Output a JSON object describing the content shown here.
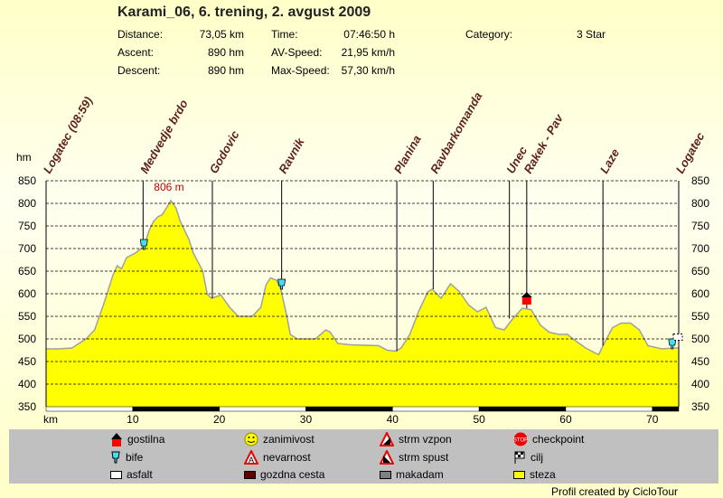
{
  "header": {
    "title": "Karami_06, 6. trening, 2. avgust 2009",
    "stats": [
      {
        "label": "Distance:",
        "value": "73,05 km"
      },
      {
        "label": "Ascent:",
        "value": "890 hm"
      },
      {
        "label": "Descent:",
        "value": "890 hm"
      },
      {
        "label": "Time:",
        "value": "07:46:50 h"
      },
      {
        "label": "AV-Speed:",
        "value": "21,95 km/h"
      },
      {
        "label": "Max-Speed:",
        "value": "57,30 km/h"
      },
      {
        "label": "Category:",
        "value": "3 Star"
      }
    ]
  },
  "chart_data": {
    "type": "area",
    "title": "Karami_06, 6. trening, 2. avgust 2009",
    "xlabel": "km",
    "ylabel": "hm",
    "xlim": [
      0,
      73.05
    ],
    "ylim": [
      350,
      850
    ],
    "xticks": [
      10,
      20,
      30,
      40,
      50,
      60,
      70
    ],
    "yticks": [
      350,
      400,
      450,
      500,
      550,
      600,
      650,
      700,
      750,
      800,
      850
    ],
    "grid": true,
    "fill_color": "#ffff00",
    "max_label": "806 m",
    "max_point": [
      14.4,
      806
    ],
    "profile": [
      [
        0,
        478
      ],
      [
        1.5,
        478
      ],
      [
        3,
        480
      ],
      [
        4.6,
        500
      ],
      [
        5.6,
        520
      ],
      [
        6.7,
        580
      ],
      [
        7.7,
        640
      ],
      [
        8.2,
        662
      ],
      [
        8.7,
        655
      ],
      [
        9.3,
        680
      ],
      [
        10.3,
        690
      ],
      [
        11.3,
        705
      ],
      [
        11.9,
        740
      ],
      [
        12.4,
        760
      ],
      [
        12.9,
        770
      ],
      [
        13.4,
        775
      ],
      [
        13.9,
        790
      ],
      [
        14.4,
        806
      ],
      [
        15,
        790
      ],
      [
        15.5,
        760
      ],
      [
        16.5,
        720
      ],
      [
        17,
        690
      ],
      [
        18.1,
        650
      ],
      [
        18.6,
        600
      ],
      [
        19.1,
        590
      ],
      [
        20.2,
        597
      ],
      [
        21.2,
        570
      ],
      [
        22.2,
        550
      ],
      [
        23.8,
        550
      ],
      [
        24.8,
        570
      ],
      [
        25.4,
        620
      ],
      [
        25.9,
        635
      ],
      [
        26.6,
        630
      ],
      [
        27.1,
        610
      ],
      [
        27.8,
        550
      ],
      [
        28.2,
        510
      ],
      [
        29,
        500
      ],
      [
        31.1,
        500
      ],
      [
        32.3,
        520
      ],
      [
        32.8,
        515
      ],
      [
        33.7,
        490
      ],
      [
        35.2,
        487
      ],
      [
        38.4,
        485
      ],
      [
        39.4,
        475
      ],
      [
        40.4,
        473
      ],
      [
        41,
        480
      ],
      [
        42,
        510
      ],
      [
        43,
        560
      ],
      [
        44.1,
        605
      ],
      [
        44.6,
        610
      ],
      [
        45.6,
        590
      ],
      [
        46.7,
        622
      ],
      [
        47.7,
        605
      ],
      [
        48.8,
        575
      ],
      [
        49.8,
        560
      ],
      [
        50.8,
        570
      ],
      [
        51.9,
        525
      ],
      [
        52.9,
        520
      ],
      [
        53.9,
        545
      ],
      [
        55,
        568
      ],
      [
        56,
        565
      ],
      [
        57.1,
        530
      ],
      [
        58.1,
        515
      ],
      [
        59.2,
        510
      ],
      [
        60.2,
        510
      ],
      [
        61.2,
        495
      ],
      [
        62.3,
        480
      ],
      [
        63.3,
        470
      ],
      [
        63.8,
        465
      ],
      [
        64.3,
        485
      ],
      [
        65.4,
        525
      ],
      [
        66.4,
        535
      ],
      [
        67.5,
        535
      ],
      [
        68.5,
        520
      ],
      [
        69.5,
        485
      ],
      [
        71.1,
        478
      ],
      [
        72.6,
        480
      ],
      [
        73.05,
        480
      ]
    ],
    "waypoints": [
      {
        "name": "Logatec (08:59)",
        "km": 0
      },
      {
        "name": "Medvedje brdo",
        "km": 11.2
      },
      {
        "name": "Godovic",
        "km": 19.2
      },
      {
        "name": "Ravnik",
        "km": 27.2
      },
      {
        "name": "Planina",
        "km": 40.5
      },
      {
        "name": "Ravbarkomanda",
        "km": 44.7
      },
      {
        "name": "Unec",
        "km": 53.5
      },
      {
        "name": "Rakek - Pav",
        "km": 55.5
      },
      {
        "name": "Laze",
        "km": 64.3
      },
      {
        "name": "Logatec",
        "km": 73.05
      }
    ],
    "markers": [
      {
        "type": "bife",
        "km": 11.3,
        "hm": 710
      },
      {
        "type": "bife",
        "km": 27.2,
        "hm": 622
      },
      {
        "type": "gostilna",
        "km": 55.5,
        "hm": 588
      },
      {
        "type": "bife",
        "km": 72.3,
        "hm": 490
      },
      {
        "type": "cilj",
        "km": 73.05,
        "hm": 495
      }
    ]
  },
  "legend": [
    {
      "label": "gostilna",
      "icon": "gostilna-icon"
    },
    {
      "label": "bife",
      "icon": "bife-icon"
    },
    {
      "label": "asfalt",
      "icon": "asfalt-swatch",
      "color": "#ffffff"
    },
    {
      "label": "zanimivost",
      "icon": "smiley-icon"
    },
    {
      "label": "nevarnost",
      "icon": "danger-icon"
    },
    {
      "label": "gozdna cesta",
      "icon": "gozdna-swatch",
      "color": "#600000"
    },
    {
      "label": "strm vzpon",
      "icon": "steep-up-icon"
    },
    {
      "label": "strm spust",
      "icon": "steep-down-icon"
    },
    {
      "label": "makadam",
      "icon": "makadam-swatch",
      "color": "#808080"
    },
    {
      "label": "checkpoint",
      "icon": "stop-icon"
    },
    {
      "label": "cilj",
      "icon": "finish-flag-icon"
    },
    {
      "label": "steza",
      "icon": "steza-swatch",
      "color": "#ffff00"
    }
  ],
  "credit": "Profil created by CicloTour"
}
